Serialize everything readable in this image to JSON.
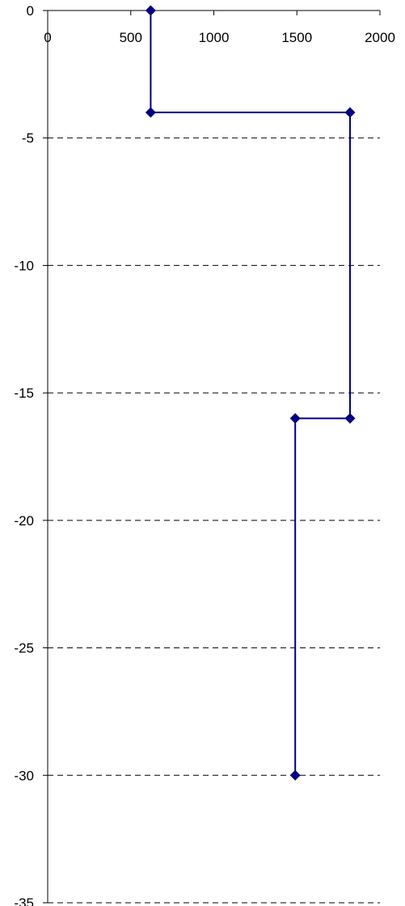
{
  "chart_data": {
    "type": "line",
    "title": "",
    "xlabel": "",
    "ylabel": "",
    "x_axis_position": "top",
    "xlim": [
      0,
      2000
    ],
    "ylim": [
      -35,
      0
    ],
    "x_ticks": [
      0,
      500,
      1000,
      1500,
      2000
    ],
    "y_ticks": [
      0,
      -5,
      -10,
      -15,
      -20,
      -25,
      -30,
      -35
    ],
    "grid": "horizontal dashed",
    "legend": "none",
    "series": [
      {
        "color": "#000080",
        "marker": "diamond",
        "points": [
          {
            "x": 620,
            "y": 0
          },
          {
            "x": 620,
            "y": -4
          },
          {
            "x": 1820,
            "y": -4
          },
          {
            "x": 1820,
            "y": -16
          },
          {
            "x": 1490,
            "y": -16
          },
          {
            "x": 1490,
            "y": -30
          }
        ]
      }
    ]
  }
}
